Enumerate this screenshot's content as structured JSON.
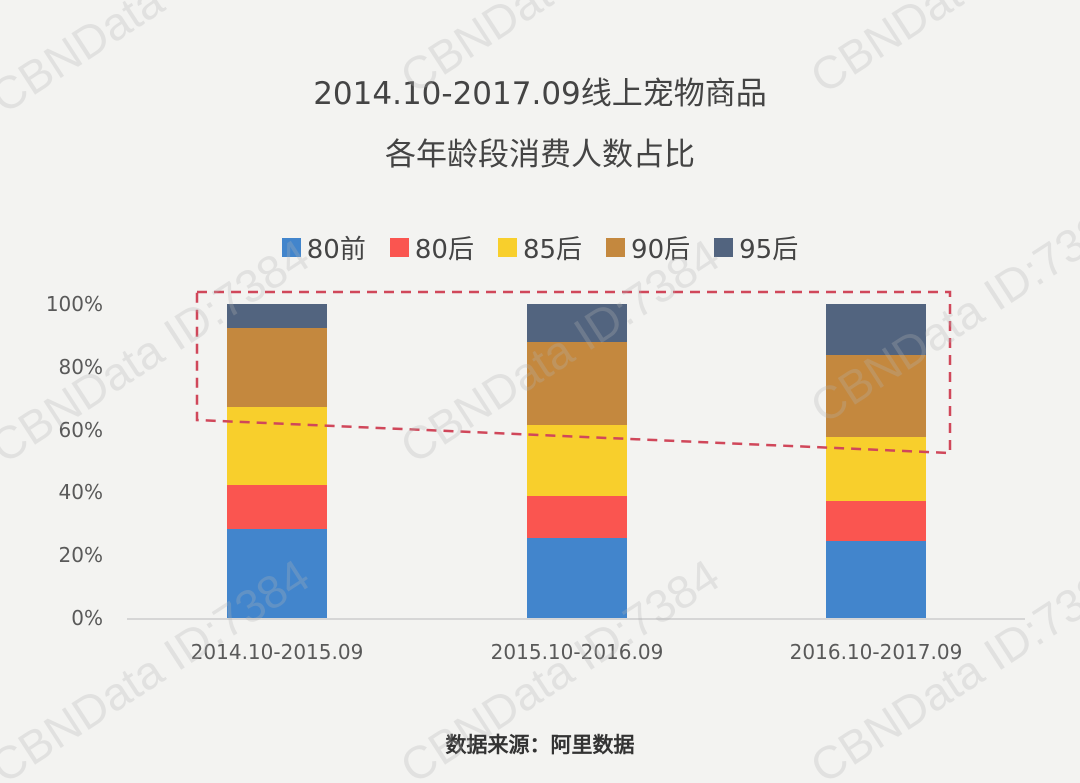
{
  "title": {
    "line1": "2014.10-2017.09线上宠物商品",
    "line2": "各年龄段消费人数占比"
  },
  "legend": [
    {
      "label": "80前",
      "color": "#4285cc"
    },
    {
      "label": "80后",
      "color": "#fa5550"
    },
    {
      "label": "85后",
      "color": "#f8cf2c"
    },
    {
      "label": "90后",
      "color": "#c4883e"
    },
    {
      "label": "95后",
      "color": "#52647f"
    }
  ],
  "y_axis": {
    "ticks": [
      "100%",
      "80%",
      "60%",
      "40%",
      "20%",
      "0%"
    ]
  },
  "x_axis": {
    "categories": [
      "2014.10-2015.09",
      "2015.10-2016.09",
      "2016.10-2017.09"
    ]
  },
  "source": "数据来源：阿里数据",
  "watermark": "CBNData ID:7384",
  "annotation": {
    "type": "dashed-highlight-box",
    "color": "#d0475a"
  },
  "chart_data": {
    "type": "bar",
    "stacked": true,
    "normalized_percent": true,
    "title": "2014.10-2017.09线上宠物商品各年龄段消费人数占比",
    "xlabel": "",
    "ylabel": "",
    "ylim": [
      0,
      100
    ],
    "y_tick_labels": [
      "0%",
      "20%",
      "40%",
      "60%",
      "80%",
      "100%"
    ],
    "grid": false,
    "legend_position": "top",
    "categories": [
      "2014.10-2015.09",
      "2015.10-2016.09",
      "2016.10-2017.09"
    ],
    "series": [
      {
        "name": "80前",
        "color": "#4285cc",
        "values": [
          28.3,
          25.5,
          24.5
        ]
      },
      {
        "name": "80后",
        "color": "#fa5550",
        "values": [
          14.0,
          13.4,
          12.7
        ]
      },
      {
        "name": "85后",
        "color": "#f8cf2c",
        "values": [
          24.9,
          22.6,
          20.4
        ]
      },
      {
        "name": "90后",
        "color": "#c4883e",
        "values": [
          25.2,
          26.4,
          26.2
        ]
      },
      {
        "name": "95后",
        "color": "#52647f",
        "values": [
          7.6,
          12.1,
          16.2
        ]
      }
    ],
    "annotations": [
      "Dashed red box highlighting the 90后 and 95后 segments across all periods"
    ],
    "source": "数据来源：阿里数据"
  }
}
